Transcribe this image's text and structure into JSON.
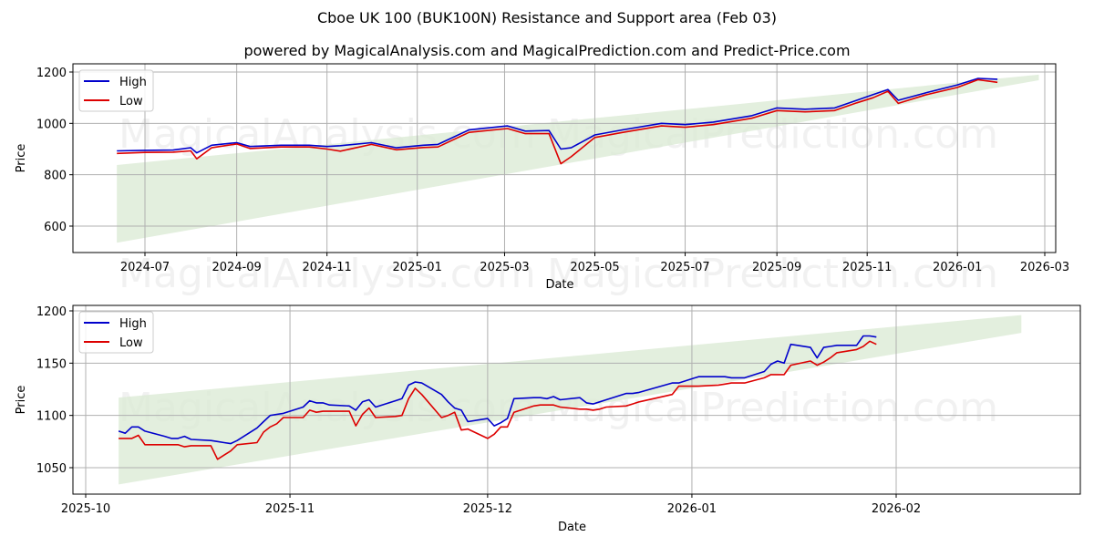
{
  "title": "Cboe UK 100 (BUK100N) Resistance and Support area (Feb 03)",
  "subtitle": "powered by MagicalAnalysis.com and MagicalPrediction.com and Predict-Price.com",
  "watermarks": [
    "MagicalAnalysis.com",
    "MagicalPrediction.com"
  ],
  "colors": {
    "high": "#0000cc",
    "low": "#dd0000",
    "band": "#d9ead3",
    "grid": "#b0b0b0"
  },
  "legend": {
    "high": "High",
    "low": "Low"
  },
  "chart_data": [
    {
      "type": "line",
      "title": "Full history",
      "xlabel": "Date",
      "ylabel": "Price",
      "ylim": [
        500,
        1230
      ],
      "yticks": [
        600,
        800,
        1000,
        1200
      ],
      "xticks": [
        "2024-07",
        "2024-09",
        "2024-11",
        "2025-01",
        "2025-03",
        "2025-05",
        "2025-07",
        "2025-09",
        "2025-11",
        "2026-01",
        "2026-03"
      ],
      "grid": true,
      "legend_position": "upper left",
      "support_band": {
        "x": [
          "2024-06-12",
          "2026-02-25"
        ],
        "lower": [
          535,
          1168
        ],
        "upper": [
          838,
          1190
        ]
      },
      "series": [
        {
          "name": "High",
          "x": [
            "2024-06-12",
            "2024-07-01",
            "2024-07-20",
            "2024-08-01",
            "2024-08-05",
            "2024-08-15",
            "2024-09-01",
            "2024-09-10",
            "2024-10-01",
            "2024-10-20",
            "2024-11-01",
            "2024-11-10",
            "2024-12-01",
            "2024-12-18",
            "2025-01-05",
            "2025-01-15",
            "2025-02-05",
            "2025-03-03",
            "2025-03-15",
            "2025-03-31",
            "2025-04-08",
            "2025-04-15",
            "2025-05-01",
            "2025-05-20",
            "2025-06-15",
            "2025-07-01",
            "2025-07-20",
            "2025-08-15",
            "2025-09-01",
            "2025-09-20",
            "2025-10-10",
            "2025-10-25",
            "2025-11-05",
            "2025-11-15",
            "2025-11-22",
            "2025-12-10",
            "2026-01-01",
            "2026-01-15",
            "2026-01-28"
          ],
          "values": [
            893,
            895,
            896,
            905,
            885,
            915,
            925,
            910,
            915,
            915,
            910,
            913,
            925,
            905,
            915,
            918,
            975,
            990,
            970,
            972,
            900,
            905,
            955,
            975,
            1000,
            995,
            1005,
            1030,
            1060,
            1055,
            1060,
            1090,
            1112,
            1132,
            1090,
            1118,
            1150,
            1175,
            1172
          ]
        },
        {
          "name": "Low",
          "x": [
            "2024-06-12",
            "2024-07-01",
            "2024-07-20",
            "2024-08-01",
            "2024-08-05",
            "2024-08-15",
            "2024-09-01",
            "2024-09-10",
            "2024-10-01",
            "2024-10-20",
            "2024-11-01",
            "2024-11-10",
            "2024-12-01",
            "2024-12-18",
            "2025-01-05",
            "2025-01-15",
            "2025-02-05",
            "2025-03-03",
            "2025-03-15",
            "2025-03-31",
            "2025-04-08",
            "2025-04-15",
            "2025-05-01",
            "2025-05-20",
            "2025-06-15",
            "2025-07-01",
            "2025-07-20",
            "2025-08-15",
            "2025-09-01",
            "2025-09-20",
            "2025-10-10",
            "2025-10-25",
            "2025-11-05",
            "2025-11-15",
            "2025-11-22",
            "2025-12-10",
            "2026-01-01",
            "2026-01-15",
            "2026-01-28"
          ],
          "values": [
            883,
            887,
            888,
            893,
            862,
            905,
            920,
            902,
            908,
            908,
            900,
            892,
            918,
            897,
            906,
            908,
            965,
            980,
            960,
            960,
            843,
            870,
            945,
            965,
            990,
            985,
            995,
            1020,
            1050,
            1045,
            1050,
            1080,
            1100,
            1125,
            1078,
            1110,
            1140,
            1170,
            1160
          ]
        }
      ]
    },
    {
      "type": "line",
      "title": "Recent detail",
      "xlabel": "Date",
      "ylabel": "Price",
      "ylim": [
        1025,
        1205
      ],
      "yticks": [
        1050,
        1100,
        1150,
        1200
      ],
      "xticks": [
        "2025-10",
        "2025-11",
        "2025-12",
        "2026-01",
        "2026-02"
      ],
      "grid": true,
      "legend_position": "upper left",
      "support_band": {
        "x": [
          "2025-10-06",
          "2026-02-20"
        ],
        "lower": [
          1034,
          1179
        ],
        "upper": [
          1117,
          1196
        ]
      },
      "series": [
        {
          "name": "High",
          "x": [
            "2025-10-06",
            "2025-10-07",
            "2025-10-08",
            "2025-10-09",
            "2025-10-10",
            "2025-10-13",
            "2025-10-14",
            "2025-10-15",
            "2025-10-16",
            "2025-10-17",
            "2025-10-20",
            "2025-10-21",
            "2025-10-22",
            "2025-10-23",
            "2025-10-24",
            "2025-10-27",
            "2025-10-28",
            "2025-10-29",
            "2025-10-30",
            "2025-10-31",
            "2025-11-03",
            "2025-11-04",
            "2025-11-05",
            "2025-11-06",
            "2025-11-07",
            "2025-11-10",
            "2025-11-11",
            "2025-11-12",
            "2025-11-13",
            "2025-11-14",
            "2025-11-17",
            "2025-11-18",
            "2025-11-19",
            "2025-11-20",
            "2025-11-21",
            "2025-11-24",
            "2025-11-25",
            "2025-11-26",
            "2025-11-27",
            "2025-11-28",
            "2025-12-01",
            "2025-12-02",
            "2025-12-03",
            "2025-12-04",
            "2025-12-05",
            "2025-12-08",
            "2025-12-09",
            "2025-12-10",
            "2025-12-11",
            "2025-12-12",
            "2025-12-15",
            "2025-12-16",
            "2025-12-17",
            "2025-12-18",
            "2025-12-19",
            "2025-12-22",
            "2025-12-23",
            "2025-12-24",
            "2025-12-29",
            "2025-12-30",
            "2026-01-02",
            "2026-01-05",
            "2026-01-06",
            "2026-01-07",
            "2026-01-08",
            "2026-01-09",
            "2026-01-12",
            "2026-01-13",
            "2026-01-14",
            "2026-01-15",
            "2026-01-16",
            "2026-01-19",
            "2026-01-20",
            "2026-01-21",
            "2026-01-22",
            "2026-01-23",
            "2026-01-26",
            "2026-01-27",
            "2026-01-28",
            "2026-01-29"
          ],
          "values": [
            1085,
            1083,
            1089,
            1089,
            1085,
            1080,
            1078,
            1078,
            1080,
            1077,
            1076,
            1075,
            1074,
            1073,
            1076,
            1088,
            1094,
            1100,
            1101,
            1102,
            1108,
            1114,
            1112,
            1112,
            1110,
            1109,
            1105,
            1113,
            1115,
            1108,
            1114,
            1116,
            1129,
            1132,
            1131,
            1120,
            1113,
            1107,
            1105,
            1094,
            1097,
            1090,
            1093,
            1097,
            1116,
            1117,
            1117,
            1116,
            1118,
            1115,
            1117,
            1112,
            1111,
            1113,
            1115,
            1121,
            1121,
            1122,
            1131,
            1131,
            1137,
            1137,
            1137,
            1136,
            1136,
            1136,
            1142,
            1149,
            1152,
            1150,
            1168,
            1165,
            1155,
            1165,
            1166,
            1167,
            1167,
            1176,
            1176,
            1175
          ]
        },
        {
          "name": "Low",
          "x": [
            "2025-10-06",
            "2025-10-07",
            "2025-10-08",
            "2025-10-09",
            "2025-10-10",
            "2025-10-13",
            "2025-10-14",
            "2025-10-15",
            "2025-10-16",
            "2025-10-17",
            "2025-10-20",
            "2025-10-21",
            "2025-10-22",
            "2025-10-23",
            "2025-10-24",
            "2025-10-27",
            "2025-10-28",
            "2025-10-29",
            "2025-10-30",
            "2025-10-31",
            "2025-11-03",
            "2025-11-04",
            "2025-11-05",
            "2025-11-06",
            "2025-11-07",
            "2025-11-10",
            "2025-11-11",
            "2025-11-12",
            "2025-11-13",
            "2025-11-14",
            "2025-11-17",
            "2025-11-18",
            "2025-11-19",
            "2025-11-20",
            "2025-11-21",
            "2025-11-24",
            "2025-11-25",
            "2025-11-26",
            "2025-11-27",
            "2025-11-28",
            "2025-12-01",
            "2025-12-02",
            "2025-12-03",
            "2025-12-04",
            "2025-12-05",
            "2025-12-08",
            "2025-12-09",
            "2025-12-10",
            "2025-12-11",
            "2025-12-12",
            "2025-12-15",
            "2025-12-16",
            "2025-12-17",
            "2025-12-18",
            "2025-12-19",
            "2025-12-22",
            "2025-12-23",
            "2025-12-24",
            "2025-12-29",
            "2025-12-30",
            "2026-01-02",
            "2026-01-05",
            "2026-01-06",
            "2026-01-07",
            "2026-01-08",
            "2026-01-09",
            "2026-01-12",
            "2026-01-13",
            "2026-01-14",
            "2026-01-15",
            "2026-01-16",
            "2026-01-19",
            "2026-01-20",
            "2026-01-21",
            "2026-01-22",
            "2026-01-23",
            "2026-01-26",
            "2026-01-27",
            "2026-01-28",
            "2026-01-29"
          ],
          "values": [
            1078,
            1078,
            1078,
            1081,
            1072,
            1072,
            1072,
            1072,
            1070,
            1071,
            1071,
            1058,
            1062,
            1066,
            1072,
            1074,
            1084,
            1089,
            1092,
            1098,
            1098,
            1105,
            1103,
            1104,
            1104,
            1104,
            1090,
            1101,
            1107,
            1098,
            1099,
            1100,
            1116,
            1126,
            1120,
            1098,
            1100,
            1103,
            1086,
            1087,
            1078,
            1082,
            1089,
            1089,
            1103,
            1109,
            1110,
            1110,
            1110,
            1108,
            1106,
            1106,
            1105,
            1106,
            1108,
            1109,
            1111,
            1113,
            1120,
            1128,
            1128,
            1129,
            1130,
            1131,
            1131,
            1131,
            1136,
            1139,
            1139,
            1139,
            1148,
            1152,
            1148,
            1151,
            1155,
            1160,
            1163,
            1166,
            1171,
            1168
          ]
        }
      ]
    }
  ]
}
